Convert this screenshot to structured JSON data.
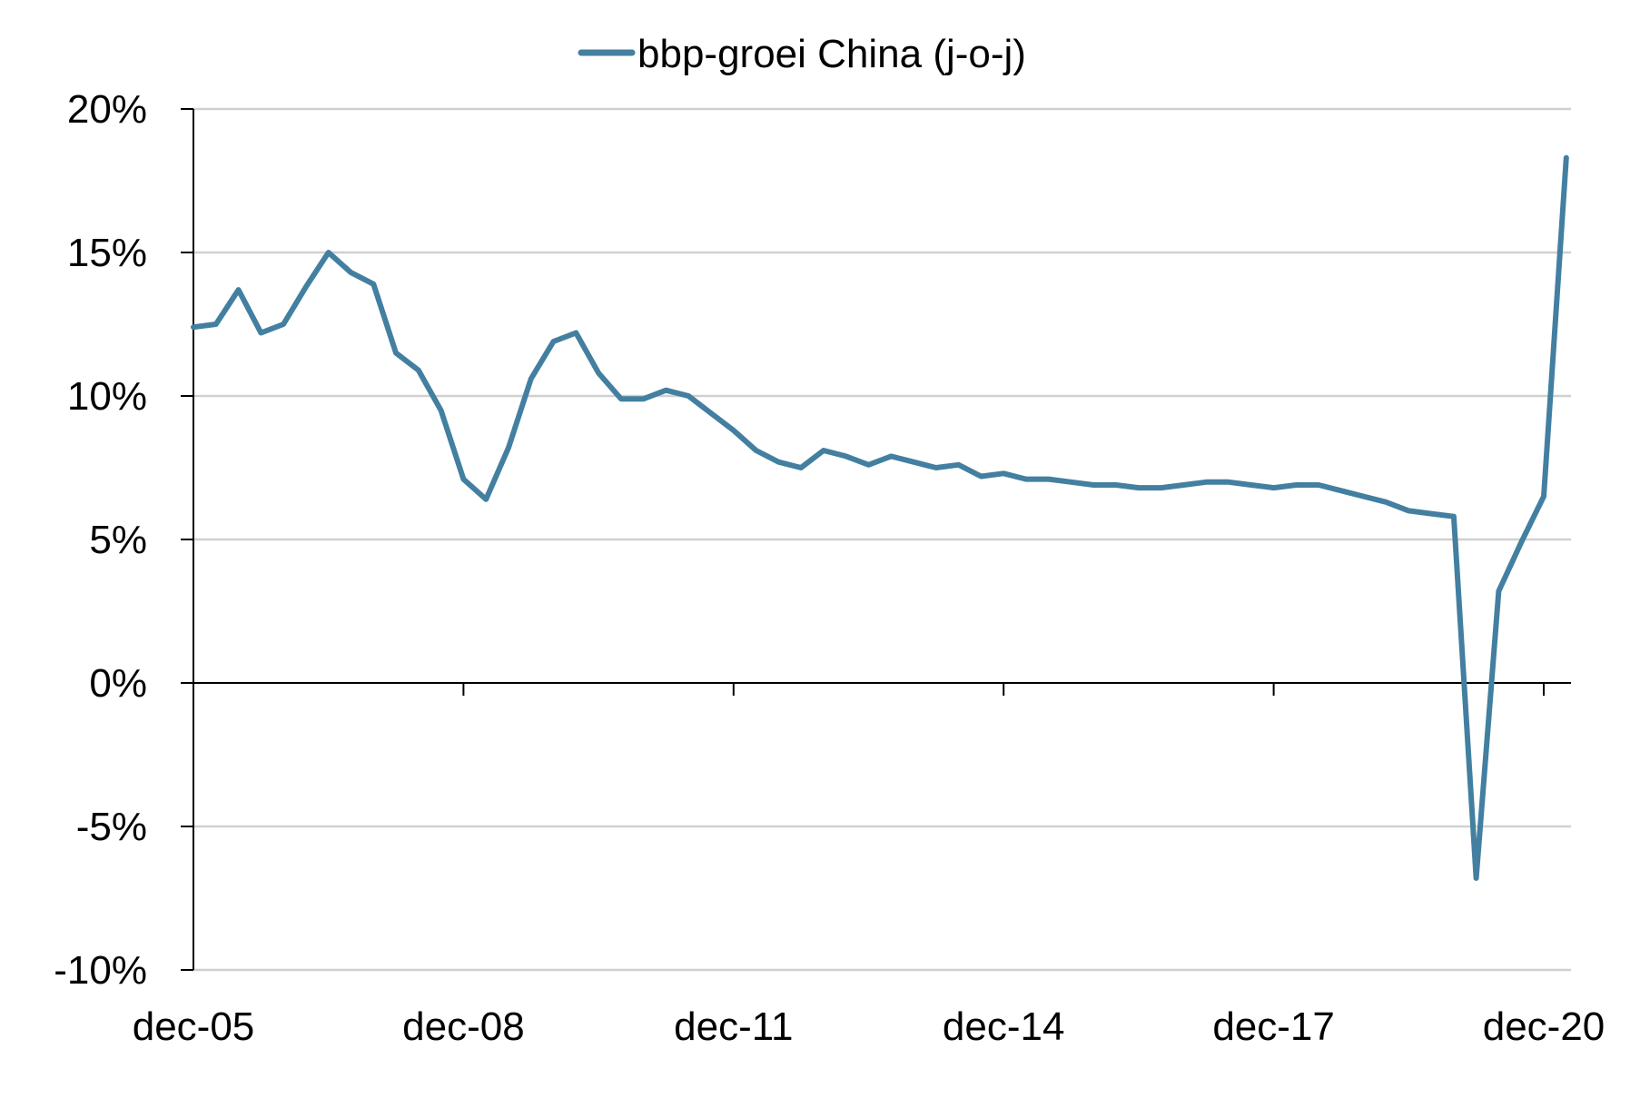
{
  "chart_data": {
    "type": "line",
    "title": "",
    "xlabel": "",
    "ylabel": "",
    "ylim": [
      -10,
      20
    ],
    "y_ticks": [
      20,
      15,
      10,
      5,
      0,
      -5,
      -10
    ],
    "y_tick_labels": [
      "20%",
      "15%",
      "10%",
      "5%",
      "0%",
      "-5%",
      "-10%"
    ],
    "x_ticks": [
      "2005-12",
      "2008-12",
      "2011-12",
      "2014-12",
      "2017-12",
      "2020-12"
    ],
    "x_tick_labels": [
      "dec-05",
      "dec-08",
      "dec-11",
      "dec-14",
      "dec-17",
      "dec-20"
    ],
    "grid": true,
    "legend_position": "top-center",
    "colors": {
      "series": "#437fa0",
      "grid": "#d0d0d0",
      "axis": "#000000"
    },
    "series": [
      {
        "name": "bbp-groei China (j-o-j)",
        "x": [
          "2005-12",
          "2006-03",
          "2006-06",
          "2006-09",
          "2006-12",
          "2007-03",
          "2007-06",
          "2007-09",
          "2007-12",
          "2008-03",
          "2008-06",
          "2008-09",
          "2008-12",
          "2009-03",
          "2009-06",
          "2009-09",
          "2009-12",
          "2010-03",
          "2010-06",
          "2010-09",
          "2010-12",
          "2011-03",
          "2011-06",
          "2011-09",
          "2011-12",
          "2012-03",
          "2012-06",
          "2012-09",
          "2012-12",
          "2013-03",
          "2013-06",
          "2013-09",
          "2013-12",
          "2014-03",
          "2014-06",
          "2014-09",
          "2014-12",
          "2015-03",
          "2015-06",
          "2015-09",
          "2015-12",
          "2016-03",
          "2016-06",
          "2016-09",
          "2016-12",
          "2017-03",
          "2017-06",
          "2017-09",
          "2017-12",
          "2018-03",
          "2018-06",
          "2018-09",
          "2018-12",
          "2019-03",
          "2019-06",
          "2019-09",
          "2019-12",
          "2020-03",
          "2020-06",
          "2020-09",
          "2020-12",
          "2021-03"
        ],
        "values": [
          12.4,
          12.5,
          13.7,
          12.2,
          12.5,
          13.8,
          15.0,
          14.3,
          13.9,
          11.5,
          10.9,
          9.5,
          7.1,
          6.4,
          8.2,
          10.6,
          11.9,
          12.2,
          10.8,
          9.9,
          9.9,
          10.2,
          10.0,
          9.4,
          8.8,
          8.1,
          7.7,
          7.5,
          8.1,
          7.9,
          7.6,
          7.9,
          7.7,
          7.5,
          7.6,
          7.2,
          7.3,
          7.1,
          7.1,
          7.0,
          6.9,
          6.9,
          6.8,
          6.8,
          6.9,
          7.0,
          7.0,
          6.9,
          6.8,
          6.9,
          6.9,
          6.7,
          6.5,
          6.3,
          6.0,
          5.9,
          5.8,
          -6.8,
          3.2,
          4.9,
          6.5,
          18.3
        ]
      }
    ]
  }
}
